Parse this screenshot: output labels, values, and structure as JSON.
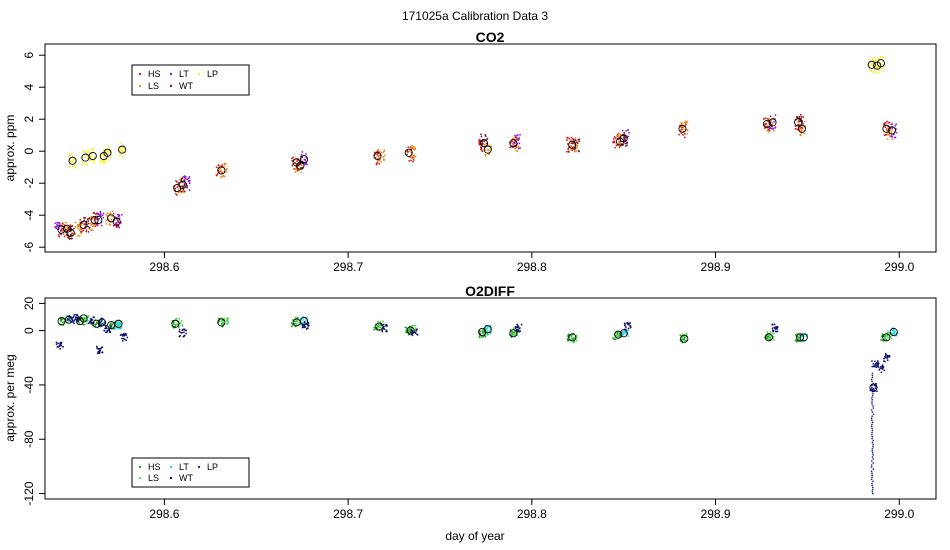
{
  "figure": {
    "title": "171025a   Calibration Data 3",
    "xlabel": "day of year"
  },
  "colors": {
    "HS": "#d81b1b",
    "LS": "#f08a1c",
    "LT": "#8a1fd6",
    "WT": "#7a1a2a",
    "LP": "#f4f42a",
    "o2_HS": "#1aa01a",
    "o2_LS": "#5ad85a",
    "o2_LT": "#22d8e8",
    "o2_WT": "#101070",
    "o2_LP": "#2a2ab8"
  },
  "chart_data": [
    {
      "type": "scatter",
      "title": "CO2",
      "ylabel": "approx. ppm",
      "xlim": [
        298.535,
        299.02
      ],
      "ylim": [
        -6.3,
        6.7
      ],
      "xticks": [
        298.6,
        298.7,
        298.8,
        298.9,
        299.0
      ],
      "xtick_labels": [
        "298.6",
        "298.7",
        "298.8",
        "298.9",
        "299.0"
      ],
      "yticks": [
        -6,
        -4,
        -2,
        0,
        2,
        4,
        6
      ],
      "ytick_labels": [
        "-6",
        "-4",
        "-2",
        "0",
        "2",
        "4",
        "6"
      ],
      "grid": false,
      "legend": {
        "placement": "top-left",
        "entries": [
          "HS",
          "LT",
          "LP",
          "LS",
          "WT"
        ]
      },
      "series": [
        {
          "name": "HS",
          "points": [
            [
              298.544,
              -4.9
            ],
            [
              298.549,
              -5.0
            ],
            [
              298.556,
              -4.6
            ],
            [
              298.563,
              -4.3
            ],
            [
              298.574,
              -4.3
            ],
            [
              298.607,
              -2.3
            ],
            [
              298.63,
              -1.3
            ],
            [
              298.671,
              -0.7
            ],
            [
              298.716,
              -0.4
            ],
            [
              298.734,
              -0.2
            ],
            [
              298.773,
              0.4
            ],
            [
              298.79,
              0.5
            ],
            [
              298.821,
              0.4
            ],
            [
              298.846,
              0.6
            ],
            [
              298.882,
              1.3
            ],
            [
              298.928,
              1.7
            ],
            [
              298.945,
              1.7
            ],
            [
              298.993,
              1.4
            ]
          ]
        },
        {
          "name": "LS",
          "points": [
            [
              298.546,
              -4.8
            ],
            [
              298.553,
              -4.9
            ],
            [
              298.561,
              -4.5
            ],
            [
              298.57,
              -4.2
            ],
            [
              298.609,
              -2.2
            ],
            [
              298.632,
              -1.2
            ],
            [
              298.673,
              -0.9
            ],
            [
              298.718,
              -0.3
            ],
            [
              298.735,
              -0.1
            ],
            [
              298.776,
              0.1
            ],
            [
              298.791,
              0.4
            ],
            [
              298.823,
              0.4
            ],
            [
              298.849,
              0.7
            ],
            [
              298.883,
              1.5
            ],
            [
              298.93,
              1.6
            ],
            [
              298.947,
              1.4
            ],
            [
              298.995,
              1.2
            ]
          ]
        },
        {
          "name": "LT",
          "points": [
            [
              298.542,
              -4.8
            ],
            [
              298.565,
              -4.2
            ],
            [
              298.575,
              -4.4
            ],
            [
              298.612,
              -2.0
            ],
            [
              298.676,
              -0.5
            ],
            [
              298.792,
              0.6
            ],
            [
              298.851,
              0.9
            ],
            [
              298.931,
              1.8
            ],
            [
              298.997,
              1.3
            ]
          ]
        },
        {
          "name": "WT",
          "points": [
            [
              298.548,
              -5.1
            ],
            [
              298.558,
              -4.6
            ],
            [
              298.611,
              -2.1
            ],
            [
              298.674,
              -0.8
            ],
            [
              298.774,
              0.6
            ],
            [
              298.824,
              0.3
            ],
            [
              298.85,
              0.7
            ],
            [
              298.946,
              1.9
            ]
          ]
        },
        {
          "name": "LP",
          "points": [
            [
              298.55,
              -0.6
            ],
            [
              298.557,
              -0.4
            ],
            [
              298.561,
              -0.3
            ],
            [
              298.567,
              -0.3
            ],
            [
              298.569,
              -0.1
            ],
            [
              298.577,
              0.1
            ],
            [
              298.985,
              5.4
            ],
            [
              298.988,
              5.3
            ],
            [
              298.99,
              5.5
            ]
          ]
        }
      ],
      "means": [
        [
          298.544,
          -4.9
        ],
        [
          298.547,
          -4.85
        ],
        [
          298.549,
          -5.1
        ],
        [
          298.556,
          -4.6
        ],
        [
          298.562,
          -4.3
        ],
        [
          298.564,
          -4.3
        ],
        [
          298.571,
          -4.2
        ],
        [
          298.574,
          -4.4
        ],
        [
          298.55,
          -0.6
        ],
        [
          298.557,
          -0.4
        ],
        [
          298.561,
          -0.3
        ],
        [
          298.567,
          -0.3
        ],
        [
          298.569,
          -0.1
        ],
        [
          298.577,
          0.1
        ],
        [
          298.607,
          -2.3
        ],
        [
          298.61,
          -2.1
        ],
        [
          298.631,
          -1.2
        ],
        [
          298.672,
          -0.7
        ],
        [
          298.674,
          -0.9
        ],
        [
          298.676,
          -0.5
        ],
        [
          298.716,
          -0.3
        ],
        [
          298.733,
          -0.1
        ],
        [
          298.774,
          0.5
        ],
        [
          298.776,
          0.1
        ],
        [
          298.79,
          0.5
        ],
        [
          298.822,
          0.4
        ],
        [
          298.848,
          0.6
        ],
        [
          298.85,
          0.8
        ],
        [
          298.882,
          1.4
        ],
        [
          298.928,
          1.7
        ],
        [
          298.931,
          1.8
        ],
        [
          298.945,
          1.8
        ],
        [
          298.947,
          1.4
        ],
        [
          298.985,
          5.4
        ],
        [
          298.988,
          5.35
        ],
        [
          298.99,
          5.5
        ],
        [
          298.993,
          1.4
        ],
        [
          298.996,
          1.3
        ]
      ]
    },
    {
      "type": "scatter",
      "title": "O2DIFF",
      "ylabel": "approx. per meg",
      "xlim": [
        298.535,
        299.02
      ],
      "ylim": [
        -124,
        24
      ],
      "xticks": [
        298.6,
        298.7,
        298.8,
        298.9,
        299.0
      ],
      "xtick_labels": [
        "298.6",
        "298.7",
        "298.8",
        "298.9",
        "299.0"
      ],
      "yticks": [
        -120,
        -80,
        -40,
        0,
        20
      ],
      "ytick_labels": [
        "-120",
        "-80",
        "-40",
        "0",
        "20"
      ],
      "grid": false,
      "legend": {
        "placement": "bottom-left",
        "entries": [
          "HS",
          "LT",
          "LP",
          "LS",
          "WT"
        ]
      },
      "series": [
        {
          "name": "HS",
          "points": [
            [
              298.545,
              7
            ],
            [
              298.555,
              7
            ],
            [
              298.563,
              5
            ],
            [
              298.571,
              4
            ],
            [
              298.606,
              5
            ],
            [
              298.631,
              6
            ],
            [
              298.671,
              6
            ],
            [
              298.716,
              3
            ],
            [
              298.733,
              0
            ],
            [
              298.773,
              -2
            ],
            [
              298.79,
              -2
            ],
            [
              298.821,
              -5
            ],
            [
              298.846,
              -4
            ],
            [
              298.882,
              -6
            ],
            [
              298.928,
              -5
            ],
            [
              298.945,
              -6
            ],
            [
              298.992,
              -5
            ]
          ]
        },
        {
          "name": "LS",
          "points": [
            [
              298.547,
              8
            ],
            [
              298.557,
              8
            ],
            [
              298.566,
              6
            ],
            [
              298.575,
              5
            ],
            [
              298.608,
              6
            ],
            [
              298.633,
              7
            ],
            [
              298.673,
              7
            ],
            [
              298.718,
              4
            ],
            [
              298.735,
              1
            ],
            [
              298.775,
              -1
            ],
            [
              298.791,
              -1
            ],
            [
              298.823,
              -6
            ],
            [
              298.848,
              -3
            ],
            [
              298.883,
              -5
            ],
            [
              298.93,
              -4
            ],
            [
              298.946,
              -5
            ],
            [
              298.994,
              -4
            ]
          ]
        },
        {
          "name": "LT",
          "points": [
            [
              298.575,
              4
            ],
            [
              298.676,
              7
            ],
            [
              298.776,
              1
            ],
            [
              298.851,
              -2
            ],
            [
              298.948,
              -5
            ],
            [
              298.997,
              -1
            ]
          ]
        },
        {
          "name": "WT",
          "points": [
            [
              298.543,
              -11
            ],
            [
              298.552,
              9
            ],
            [
              298.56,
              7
            ],
            [
              298.565,
              -14
            ],
            [
              298.569,
              1
            ],
            [
              298.578,
              -5
            ],
            [
              298.61,
              -2
            ],
            [
              298.677,
              4
            ],
            [
              298.72,
              2
            ],
            [
              298.736,
              -2
            ],
            [
              298.793,
              2
            ],
            [
              298.852,
              3
            ],
            [
              298.932,
              2
            ],
            [
              298.987,
              -25
            ],
            [
              298.99,
              -28
            ],
            [
              298.993,
              -20
            ]
          ]
        },
        {
          "name": "LP",
          "points": [
            [
              298.549,
              8
            ],
            [
              298.566,
              6
            ],
            [
              298.986,
              -42
            ]
          ]
        }
      ],
      "means": [
        [
          298.544,
          7
        ],
        [
          298.548,
          8
        ],
        [
          298.554,
          7
        ],
        [
          298.556,
          9
        ],
        [
          298.563,
          5
        ],
        [
          298.566,
          6
        ],
        [
          298.571,
          4
        ],
        [
          298.575,
          5
        ],
        [
          298.606,
          5
        ],
        [
          298.631,
          6
        ],
        [
          298.672,
          6
        ],
        [
          298.676,
          7
        ],
        [
          298.717,
          3
        ],
        [
          298.734,
          0
        ],
        [
          298.773,
          -1
        ],
        [
          298.776,
          1
        ],
        [
          298.79,
          -2
        ],
        [
          298.822,
          -5
        ],
        [
          298.847,
          -3
        ],
        [
          298.85,
          -2
        ],
        [
          298.883,
          -6
        ],
        [
          298.929,
          -5
        ],
        [
          298.946,
          -5
        ],
        [
          298.948,
          -5
        ],
        [
          298.986,
          -42
        ],
        [
          298.993,
          -5
        ],
        [
          298.997,
          -1
        ]
      ]
    }
  ]
}
